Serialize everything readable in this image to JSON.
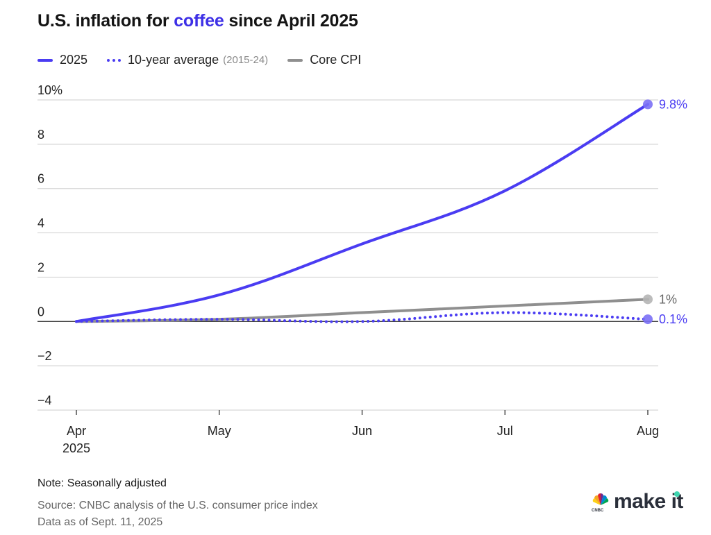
{
  "title": {
    "prefix": "U.S. inflation for ",
    "highlight": "coffee",
    "suffix": " since April 2025"
  },
  "legend": [
    {
      "label": "2025",
      "sub": "",
      "style": "solid"
    },
    {
      "label": "10-year average",
      "sub": "(2015-24)",
      "style": "dotted"
    },
    {
      "label": "Core CPI",
      "sub": "",
      "style": "gray"
    }
  ],
  "colors": {
    "accent": "#4a3cf2",
    "marker": "#7b70f5",
    "core": "#8f8f8f",
    "grid": "#d6d6d6",
    "zero": "#222222"
  },
  "chart_data": {
    "type": "line",
    "title": "U.S. inflation for coffee since April 2025",
    "xlabel": "",
    "ylabel": "",
    "categories": [
      "Apr",
      "May",
      "Jun",
      "Jul",
      "Aug"
    ],
    "x_tick_labels": [
      "Apr\n2025",
      "May",
      "Jun",
      "Jul",
      "Aug"
    ],
    "y_ticks": [
      10,
      8,
      6,
      4,
      2,
      0,
      -2,
      -4
    ],
    "y_tick_labels": [
      "10%",
      "8",
      "6",
      "4",
      "2",
      "0",
      "−2",
      "−4"
    ],
    "ylim": [
      -4,
      10
    ],
    "grid": true,
    "legend_position": "top-left",
    "series": [
      {
        "name": "2025",
        "values": [
          0,
          1.2,
          3.5,
          5.9,
          9.8
        ],
        "end_label": "9.8%",
        "color": "#4a3cf2",
        "style": "solid"
      },
      {
        "name": "10-year average (2015-24)",
        "values": [
          0,
          0.1,
          0.0,
          0.4,
          0.1
        ],
        "end_label": "0.1%",
        "color": "#4a3cf2",
        "style": "dotted"
      },
      {
        "name": "Core CPI",
        "values": [
          0,
          0.1,
          0.4,
          0.7,
          1.0
        ],
        "end_label": "1%",
        "color": "#8f8f8f",
        "style": "solid"
      }
    ]
  },
  "footer": {
    "note": "Note: Seasonally adjusted",
    "source": "Source: CNBC analysis of the U.S. consumer price index",
    "date": "Data as of Sept. 11, 2025"
  },
  "logo": {
    "brand": "CNBC",
    "text": "make it"
  }
}
